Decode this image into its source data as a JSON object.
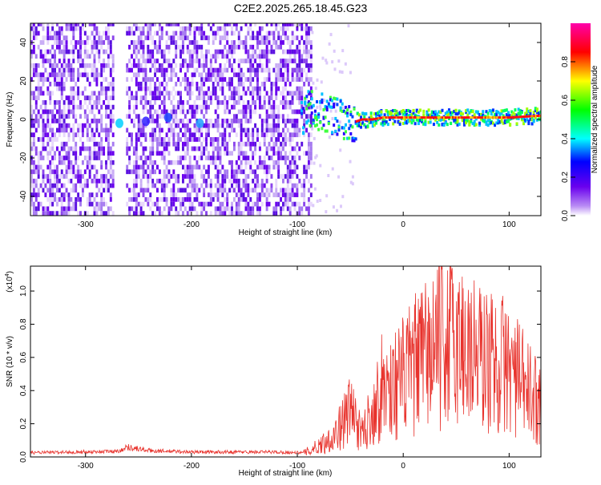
{
  "title": "C2E2.2025.265.18.45.G23",
  "chart_data": [
    {
      "type": "heatmap",
      "xlabel": "Height of straight line (km)",
      "ylabel": "Frequency (Hz)",
      "xlim": [
        -352,
        130
      ],
      "ylim": [
        -50,
        50
      ],
      "x_ticks": [
        -300,
        -200,
        -100,
        0,
        100
      ],
      "y_ticks": [
        -40,
        -20,
        0,
        20,
        40
      ],
      "x_tick_labels": [
        "-300",
        "-200",
        "-100",
        "0",
        "100"
      ],
      "y_tick_labels": [
        "-40",
        "-20",
        "0",
        "20",
        "40"
      ],
      "noise_region_x": [
        -352,
        -88
      ],
      "signal_track": [
        {
          "x": -95,
          "y": 8
        },
        {
          "x": -90,
          "y": 6
        },
        {
          "x": -85,
          "y": 5
        },
        {
          "x": -80,
          "y": 4
        },
        {
          "x": -75,
          "y": 3
        },
        {
          "x": -70,
          "y": 2
        },
        {
          "x": -65,
          "y": 1
        },
        {
          "x": -60,
          "y": 0
        },
        {
          "x": -55,
          "y": -1
        },
        {
          "x": -50,
          "y": -2
        },
        {
          "x": -45,
          "y": -1
        },
        {
          "x": -40,
          "y": 0
        },
        {
          "x": -30,
          "y": 0
        },
        {
          "x": -20,
          "y": 1
        },
        {
          "x": 0,
          "y": 1
        },
        {
          "x": 50,
          "y": 1
        },
        {
          "x": 100,
          "y": 1
        },
        {
          "x": 130,
          "y": 2
        }
      ],
      "colorbar": {
        "label": "Normalized spectral amplitude",
        "range": [
          0,
          1
        ],
        "ticks": [
          0.0,
          0.2,
          0.4,
          0.6,
          0.8
        ],
        "tick_labels": [
          "0.0",
          "0.2",
          "0.4",
          "0.6",
          "0.8"
        ]
      },
      "grid": false
    },
    {
      "type": "line",
      "xlabel": "Height of straight line (km)",
      "ylabel": "SNR (10 * v/v)",
      "y_exponent_label": "(x10",
      "y_exponent_power": "4",
      "xlim": [
        -352,
        130
      ],
      "ylim": [
        0,
        11500
      ],
      "x_ticks": [
        -300,
        -200,
        -100,
        0,
        100
      ],
      "y_ticks": [
        0,
        2000,
        4000,
        6000,
        8000,
        10000
      ],
      "x_tick_labels": [
        "-300",
        "-200",
        "-100",
        "0",
        "100"
      ],
      "y_tick_labels": [
        "0.0",
        "0.2",
        "0.4",
        "0.6",
        "0.8",
        "1.0"
      ],
      "color": "#e8322c",
      "envelope": [
        {
          "x": -352,
          "y": 300
        },
        {
          "x": -270,
          "y": 400
        },
        {
          "x": -260,
          "y": 700
        },
        {
          "x": -240,
          "y": 450
        },
        {
          "x": -200,
          "y": 350
        },
        {
          "x": -120,
          "y": 350
        },
        {
          "x": -95,
          "y": 300
        },
        {
          "x": -85,
          "y": 700
        },
        {
          "x": -70,
          "y": 1500
        },
        {
          "x": -60,
          "y": 2500
        },
        {
          "x": -52,
          "y": 3800
        },
        {
          "x": -47,
          "y": 4000
        },
        {
          "x": -40,
          "y": 1800
        },
        {
          "x": -30,
          "y": 3800
        },
        {
          "x": -20,
          "y": 6000
        },
        {
          "x": -10,
          "y": 6200
        },
        {
          "x": 0,
          "y": 6800
        },
        {
          "x": 10,
          "y": 7800
        },
        {
          "x": 20,
          "y": 8500
        },
        {
          "x": 30,
          "y": 9500
        },
        {
          "x": 40,
          "y": 10200
        },
        {
          "x": 50,
          "y": 9800
        },
        {
          "x": 60,
          "y": 9500
        },
        {
          "x": 70,
          "y": 8800
        },
        {
          "x": 80,
          "y": 8200
        },
        {
          "x": 90,
          "y": 8000
        },
        {
          "x": 100,
          "y": 7800
        },
        {
          "x": 110,
          "y": 6500
        },
        {
          "x": 120,
          "y": 5500
        },
        {
          "x": 130,
          "y": 4500
        }
      ],
      "grid": false
    }
  ]
}
